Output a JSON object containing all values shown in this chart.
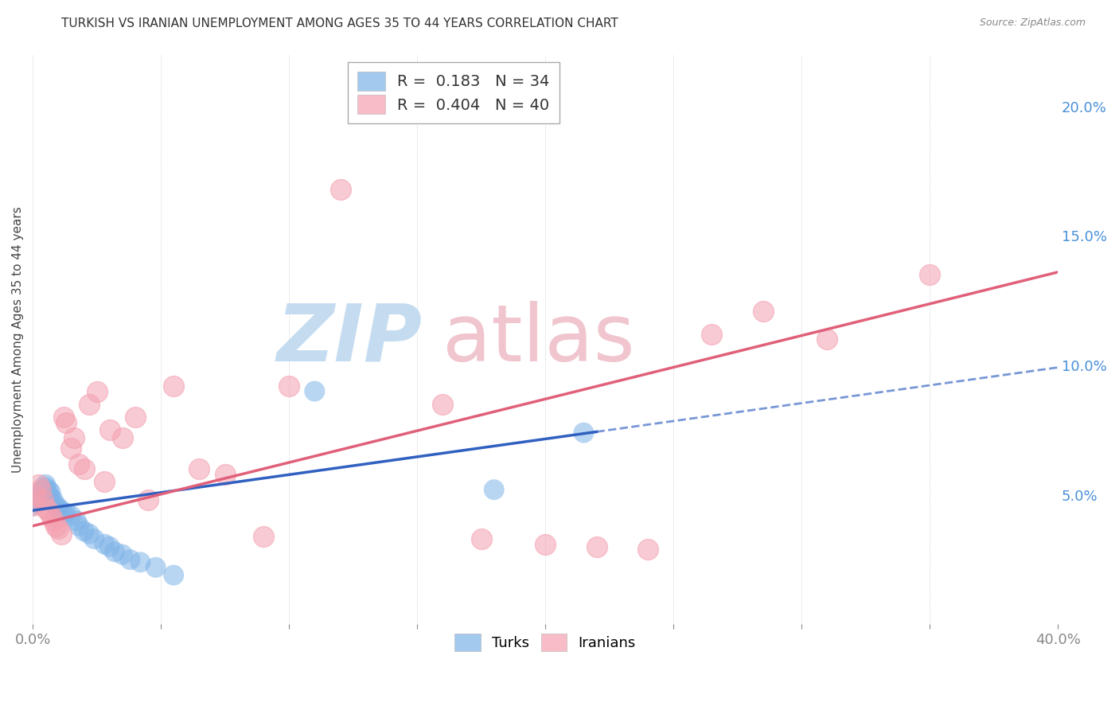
{
  "title": "TURKISH VS IRANIAN UNEMPLOYMENT AMONG AGES 35 TO 44 YEARS CORRELATION CHART",
  "source": "Source: ZipAtlas.com",
  "ylabel": "Unemployment Among Ages 35 to 44 years",
  "xlim": [
    0.0,
    0.4
  ],
  "ylim": [
    0.0,
    0.22
  ],
  "turks_color": "#7EB3E8",
  "iranians_color": "#F4A0B0",
  "turks_line_color": "#3060C0",
  "iranians_line_color": "#E0607A",
  "legend_R_turks": "0.183",
  "legend_N_turks": "34",
  "legend_R_iranians": "0.404",
  "legend_N_iranians": "40",
  "watermark_zip_color": "#C5DCF0",
  "watermark_atlas_color": "#F0C5CE",
  "background_color": "#FFFFFF",
  "grid_color": "#CCCCCC",
  "turks_x": [
    0.0,
    0.001,
    0.002,
    0.003,
    0.004,
    0.005,
    0.005,
    0.006,
    0.006,
    0.007,
    0.007,
    0.008,
    0.009,
    0.01,
    0.011,
    0.012,
    0.013,
    0.015,
    0.017,
    0.018,
    0.02,
    0.022,
    0.024,
    0.028,
    0.03,
    0.032,
    0.035,
    0.038,
    0.042,
    0.048,
    0.055,
    0.11,
    0.18,
    0.215
  ],
  "turks_y": [
    0.046,
    0.047,
    0.049,
    0.051,
    0.052,
    0.053,
    0.054,
    0.052,
    0.05,
    0.051,
    0.049,
    0.048,
    0.046,
    0.045,
    0.044,
    0.043,
    0.043,
    0.042,
    0.04,
    0.038,
    0.036,
    0.035,
    0.033,
    0.031,
    0.03,
    0.028,
    0.027,
    0.025,
    0.024,
    0.022,
    0.019,
    0.09,
    0.052,
    0.074
  ],
  "iranians_x": [
    0.0,
    0.001,
    0.002,
    0.003,
    0.004,
    0.005,
    0.006,
    0.007,
    0.008,
    0.009,
    0.01,
    0.011,
    0.012,
    0.013,
    0.015,
    0.016,
    0.018,
    0.02,
    0.022,
    0.025,
    0.028,
    0.03,
    0.035,
    0.04,
    0.045,
    0.055,
    0.065,
    0.075,
    0.09,
    0.1,
    0.12,
    0.16,
    0.175,
    0.2,
    0.22,
    0.24,
    0.265,
    0.285,
    0.31,
    0.35
  ],
  "iranians_y": [
    0.046,
    0.05,
    0.054,
    0.052,
    0.048,
    0.045,
    0.044,
    0.042,
    0.04,
    0.038,
    0.037,
    0.035,
    0.08,
    0.078,
    0.068,
    0.072,
    0.062,
    0.06,
    0.085,
    0.09,
    0.055,
    0.075,
    0.072,
    0.08,
    0.048,
    0.092,
    0.06,
    0.058,
    0.034,
    0.092,
    0.168,
    0.085,
    0.033,
    0.031,
    0.03,
    0.029,
    0.112,
    0.121,
    0.11,
    0.135
  ]
}
